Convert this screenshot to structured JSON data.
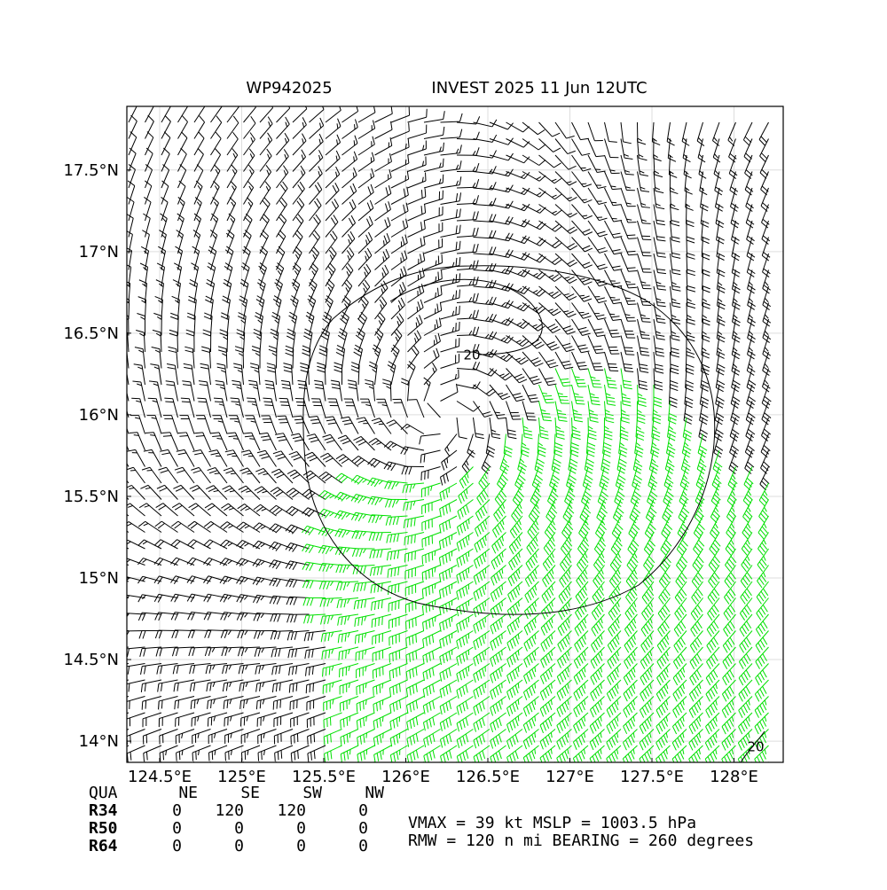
{
  "header": {
    "storm_id": "WP942025",
    "title": "INVEST 2025 11 Jun 12UTC"
  },
  "chart_data": {
    "type": "map",
    "xlim": [
      124.3,
      128.3
    ],
    "ylim": [
      13.87,
      17.89
    ],
    "xticks": [
      {
        "value": 124.5,
        "label": "124.5°E"
      },
      {
        "value": 125,
        "label": "125°E"
      },
      {
        "value": 125.5,
        "label": "125.5°E"
      },
      {
        "value": 126,
        "label": "126°E"
      },
      {
        "value": 126.5,
        "label": "126.5°E"
      },
      {
        "value": 127,
        "label": "127°E"
      },
      {
        "value": 127.5,
        "label": "127.5°E"
      },
      {
        "value": 128,
        "label": "128°E"
      }
    ],
    "yticks": [
      {
        "value": 14,
        "label": "14°N"
      },
      {
        "value": 14.5,
        "label": "14.5°N"
      },
      {
        "value": 15,
        "label": "15°N"
      },
      {
        "value": 15.5,
        "label": "15.5°N"
      },
      {
        "value": 16,
        "label": "16°N"
      },
      {
        "value": 16.5,
        "label": "16.5°N"
      },
      {
        "value": 17,
        "label": "17°N"
      },
      {
        "value": 17.5,
        "label": "17.5°N"
      }
    ],
    "grid": true,
    "contour_labels": [
      20,
      20
    ]
  },
  "table": {
    "header": [
      "QUA",
      "NE",
      "SE",
      "SW",
      "NW"
    ],
    "rows": [
      [
        "R34",
        0,
        120,
        120,
        0
      ],
      [
        "R50",
        0,
        0,
        0,
        0
      ],
      [
        "R64",
        0,
        0,
        0,
        0
      ]
    ]
  },
  "info": [
    "VMAX =  39 kt MSLP = 1003.5 hPa",
    "RMW = 120 n mi BEARING = 260 degrees"
  ]
}
